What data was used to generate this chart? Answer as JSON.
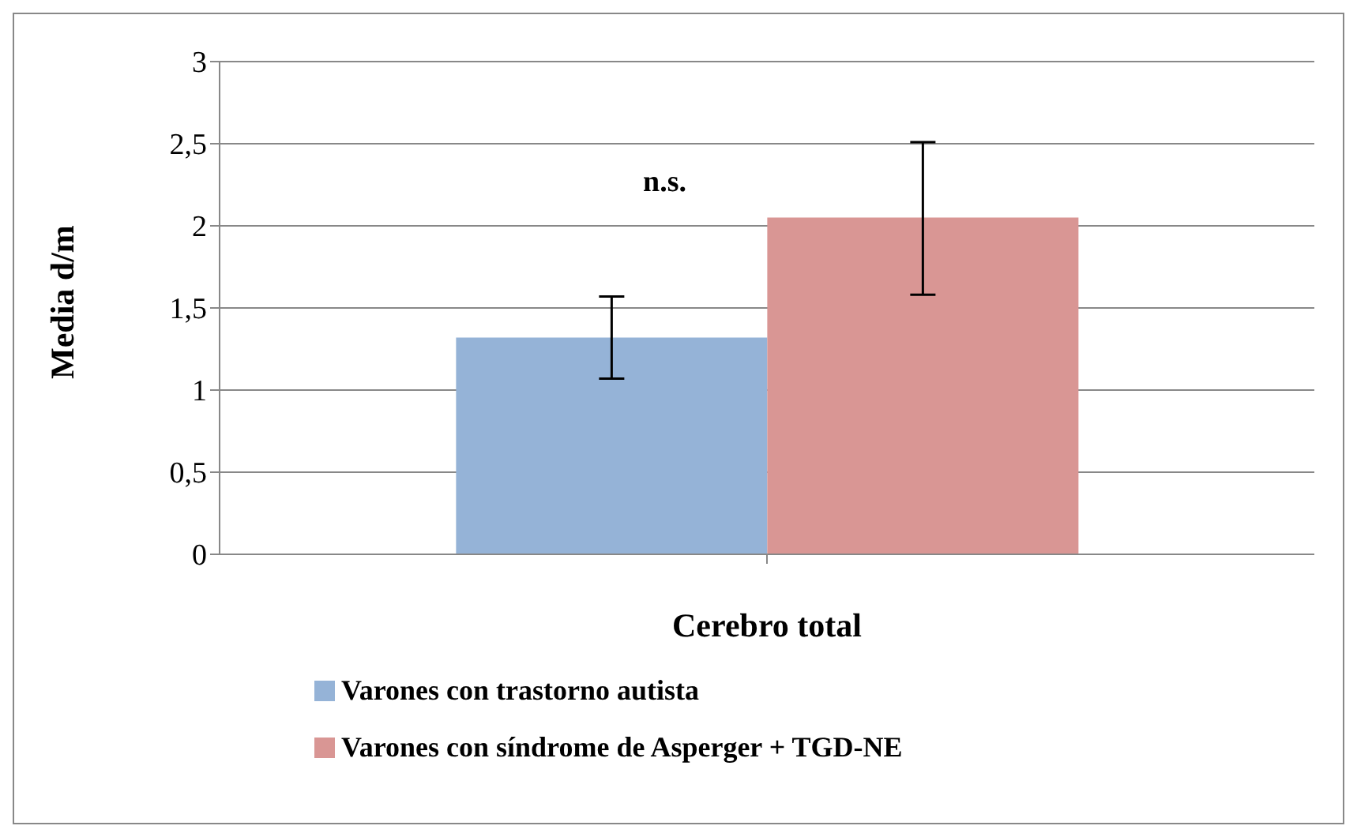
{
  "chart_data": {
    "type": "bar",
    "xlabel": "Cerebro total",
    "ylabel": "Media d/m",
    "categories": [
      null
    ],
    "series": [
      {
        "name": "Varones con trastorno autista",
        "color": "#95b3d7",
        "values": [
          1.32
        ],
        "errors": [
          [
            1.07,
            1.57
          ]
        ]
      },
      {
        "name": "Varones con síndrome de Asperger + TGD-NE",
        "color": "#d99694",
        "values": [
          2.05
        ],
        "errors": [
          [
            1.58,
            2.51
          ]
        ]
      }
    ],
    "ylim": [
      0,
      3
    ],
    "yticks": [
      0,
      {
        "value": 0.5,
        "label": "0,5"
      },
      1,
      {
        "value": 1.5,
        "label": "1,5"
      },
      2,
      {
        "value": 2.5,
        "label": "2,5"
      },
      3
    ],
    "grid": "y",
    "legend": "bottom",
    "annotations": [
      "n.s."
    ]
  }
}
